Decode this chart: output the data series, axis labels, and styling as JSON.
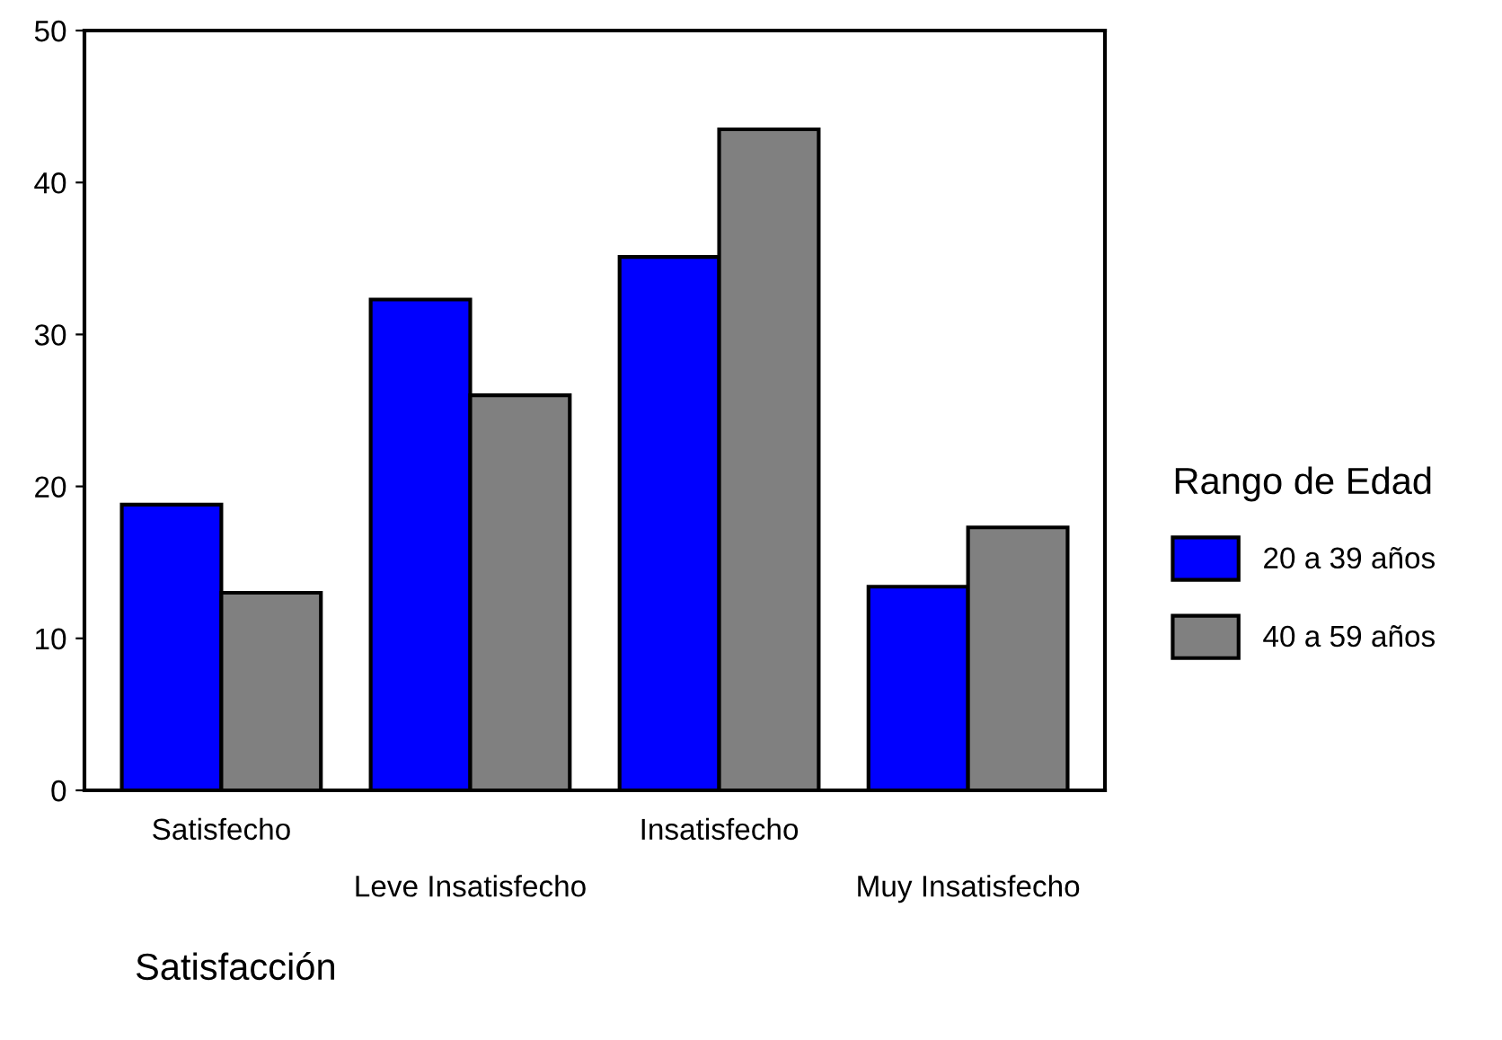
{
  "chart_data": {
    "type": "bar",
    "xlabel": "Satisfacción",
    "legend_title": "Rango de Edad",
    "categories": [
      "Satisfecho",
      "Leve Insatisfecho",
      "Insatisfecho",
      "Muy Insatisfecho"
    ],
    "series": [
      {
        "name": "20 a 39 años",
        "color": "#0000ff",
        "values": [
          18.8,
          32.3,
          35.1,
          13.4
        ]
      },
      {
        "name": "40 a 59 años",
        "color": "#808080",
        "values": [
          13.0,
          26.0,
          43.5,
          17.3
        ]
      }
    ],
    "ylim": [
      0,
      50
    ],
    "yticks": [
      0,
      10,
      20,
      30,
      40,
      50
    ],
    "grid": false,
    "legend": "right"
  }
}
